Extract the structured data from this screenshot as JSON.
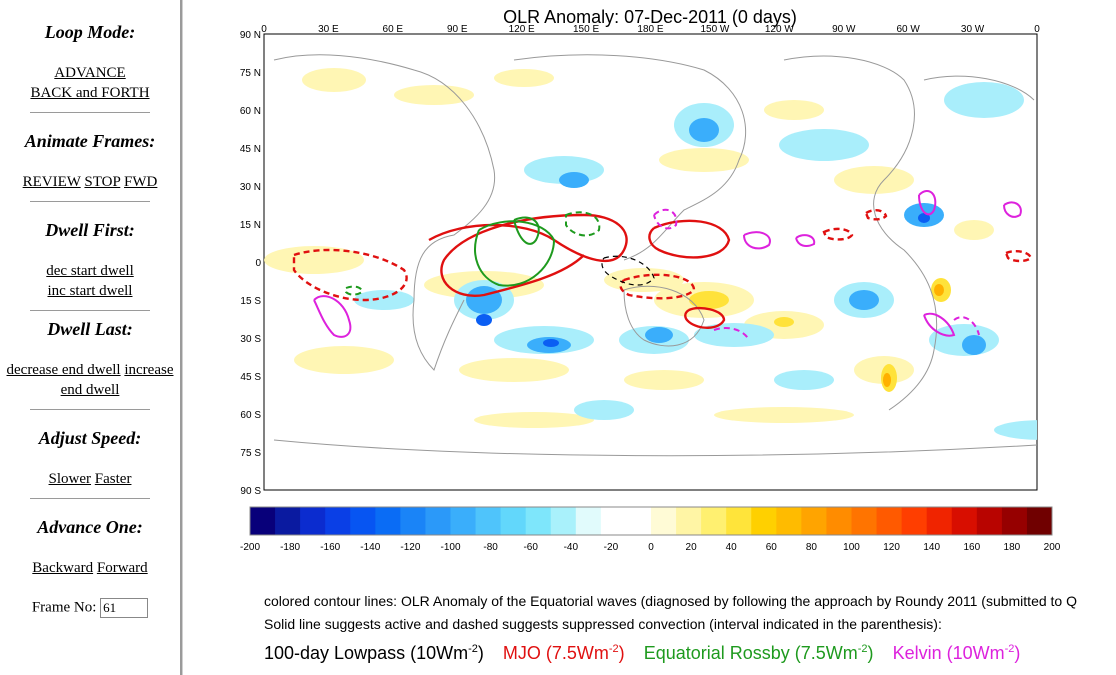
{
  "sidebar": {
    "loop_mode": {
      "title": "Loop Mode:",
      "advance": "ADVANCE",
      "back_forth": "BACK and FORTH"
    },
    "animate": {
      "title": "Animate Frames:",
      "review": "REVIEW",
      "stop": "STOP",
      "fwd": "FWD"
    },
    "dwell_first": {
      "title": "Dwell First:",
      "dec": "dec start dwell",
      "inc": "inc start dwell"
    },
    "dwell_last": {
      "title": "Dwell Last:",
      "decrease": "decrease end dwell",
      "increase_1": "increase",
      "increase_2": "end dwell"
    },
    "speed": {
      "title": "Adjust Speed:",
      "slower": "Slower",
      "faster": "Faster"
    },
    "advance_one": {
      "title": "Advance One:",
      "backward": "Backward",
      "forward": "Forward"
    },
    "frame": {
      "label": "Frame No:",
      "value": "61"
    }
  },
  "map": {
    "title": "OLR Anomaly: 07-Dec-2011 (0 days)",
    "lon_labels": [
      "0",
      "30 E",
      "60 E",
      "90 E",
      "120 E",
      "150 E",
      "180 E",
      "150 W",
      "120 W",
      "90 W",
      "60 W",
      "30 W",
      "0"
    ],
    "lat_labels": [
      "90 N",
      "75 N",
      "60 N",
      "45 N",
      "30 N",
      "15 N",
      "0",
      "15 S",
      "30 S",
      "45 S",
      "60 S",
      "75 S",
      "90 S"
    ],
    "colorbar_labels": [
      "-200",
      "-180",
      "-160",
      "-140",
      "-120",
      "-100",
      "-80",
      "-60",
      "-40",
      "-20",
      "0",
      "20",
      "40",
      "60",
      "80",
      "100",
      "120",
      "140",
      "160",
      "180",
      "200"
    ],
    "colors": {
      "neg": [
        "#08007a",
        "#0a1aa0",
        "#0b2ccf",
        "#0a3fe6",
        "#0755f2",
        "#0a6cf5",
        "#1a84f7",
        "#2b99f9",
        "#3aaefb",
        "#4fc4fb",
        "#62d7fb",
        "#7ee6fb",
        "#a9f1fb",
        "#e1fbfc"
      ],
      "pos": [
        "#fffbd6",
        "#fff5a5",
        "#fff070",
        "#ffe43a",
        "#ffd000",
        "#ffbb00",
        "#ffa400",
        "#ff8c00",
        "#ff7400",
        "#ff5a00",
        "#ff3e00",
        "#f02400",
        "#d80e00",
        "#b80400",
        "#960000",
        "#700000"
      ],
      "mjo": "#e01010",
      "rossby": "#1e9a1e",
      "kelvin": "#dd22dd"
    }
  },
  "caption": {
    "line1": "colored contour lines: OLR Anomaly of the Equatorial waves (diagnosed by following the approach by Roundy 2011 (submitted to Q",
    "line2": "Solid line suggests active and dashed suggests suppressed convection (interval indicated in the parenthesis):"
  },
  "legend": {
    "lowpass": "100-day Lowpass (10Wm",
    "lowpass_close": ")",
    "mjo": "MJO (7.5Wm",
    "mjo_close": ")",
    "rossby": "Equatorial Rossby (7.5Wm",
    "rossby_close": ")",
    "kelvin": "Kelvin (10Wm",
    "kelvin_close": ")",
    "exp": "-2"
  }
}
